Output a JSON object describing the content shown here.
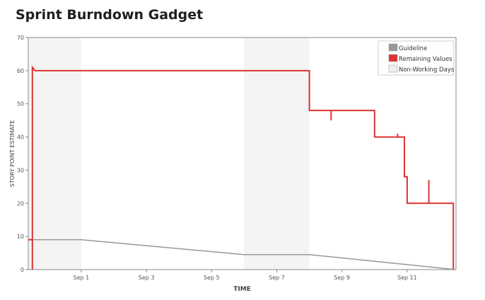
{
  "gadget": {
    "title": "Sprint Burndown Gadget"
  },
  "chart_data": {
    "type": "line",
    "title": "",
    "xlabel": "TIME",
    "ylabel": "STORY POINT ESTIMATE",
    "ylim": [
      0,
      70
    ],
    "yticks": [
      0,
      10,
      20,
      30,
      40,
      50,
      60,
      70
    ],
    "xlim": [
      "2023-08-30T09:00",
      "2023-09-12T12:00"
    ],
    "xticks": [
      {
        "label": "Sep 1",
        "date": "2023-09-01"
      },
      {
        "label": "Sep 3",
        "date": "2023-09-03"
      },
      {
        "label": "Sep 5",
        "date": "2023-09-05"
      },
      {
        "label": "Sep 7",
        "date": "2023-09-07"
      },
      {
        "label": "Sep 9",
        "date": "2023-09-09"
      },
      {
        "label": "Sep 11",
        "date": "2023-09-11"
      }
    ],
    "grid": false,
    "legend_position": "top-right",
    "non_working_days": [
      {
        "start": "2023-08-30T09:00",
        "end": "2023-09-01T00:00"
      },
      {
        "start": "2023-09-06T00:00",
        "end": "2023-09-08T00:00"
      }
    ],
    "series": [
      {
        "name": "Guideline",
        "color": "#999999",
        "points": [
          {
            "x": "2023-08-30T09:00",
            "y": 9
          },
          {
            "x": "2023-09-01T00:00",
            "y": 9
          },
          {
            "x": "2023-09-06T00:00",
            "y": 4.5
          },
          {
            "x": "2023-09-08T00:00",
            "y": 4.5
          },
          {
            "x": "2023-09-12T12:00",
            "y": 0
          }
        ]
      },
      {
        "name": "Remaining Values",
        "color": "#dd3333",
        "points": [
          {
            "x": "2023-08-30T09:00",
            "y": 9
          },
          {
            "x": "2023-08-30T12:00",
            "y": 9
          },
          {
            "x": "2023-08-30T12:00",
            "y": 0
          },
          {
            "x": "2023-08-30T12:00",
            "y": 61
          },
          {
            "x": "2023-08-30T14:00",
            "y": 60
          },
          {
            "x": "2023-09-08T00:00",
            "y": 60
          },
          {
            "x": "2023-09-08T00:00",
            "y": 48
          },
          {
            "x": "2023-09-08T16:00",
            "y": 48
          },
          {
            "x": "2023-09-08T16:00",
            "y": 45
          },
          {
            "x": "2023-09-08T16:00",
            "y": 48
          },
          {
            "x": "2023-09-10T00:00",
            "y": 48
          },
          {
            "x": "2023-09-10T00:00",
            "y": 40
          },
          {
            "x": "2023-09-10T17:00",
            "y": 40
          },
          {
            "x": "2023-09-10T17:00",
            "y": 41
          },
          {
            "x": "2023-09-10T17:00",
            "y": 40
          },
          {
            "x": "2023-09-10T22:00",
            "y": 40
          },
          {
            "x": "2023-09-10T22:00",
            "y": 28
          },
          {
            "x": "2023-09-11T00:00",
            "y": 28
          },
          {
            "x": "2023-09-11T00:00",
            "y": 20
          },
          {
            "x": "2023-09-11T16:00",
            "y": 20
          },
          {
            "x": "2023-09-11T16:00",
            "y": 27
          },
          {
            "x": "2023-09-11T16:00",
            "y": 20
          },
          {
            "x": "2023-09-12T10:00",
            "y": 20
          },
          {
            "x": "2023-09-12T10:00",
            "y": 0
          }
        ]
      }
    ],
    "legend": [
      {
        "label": "Guideline",
        "color": "#999999"
      },
      {
        "label": "Remaining Values",
        "color": "#dd3333"
      },
      {
        "label": "Non-Working Days",
        "color": "#eeeeee"
      }
    ]
  }
}
